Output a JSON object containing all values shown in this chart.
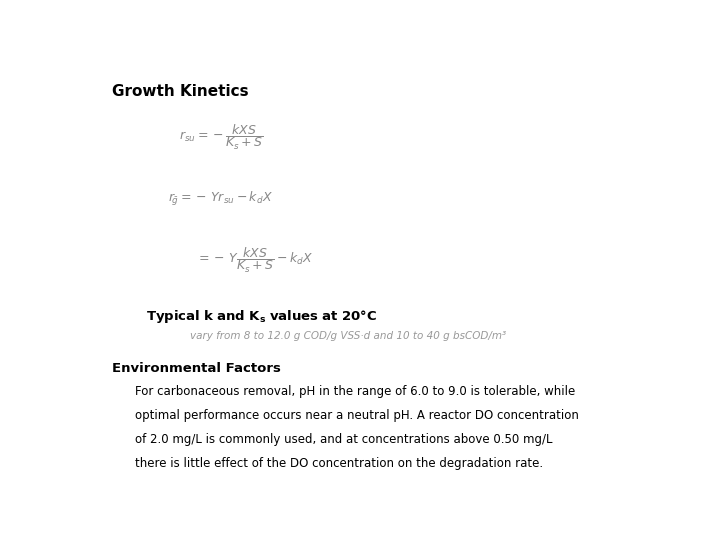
{
  "title": "Growth Kinetics",
  "typical_header_plain": "Typical k and K",
  "typical_header_sub": "s",
  "typical_header_end": " values at 20°C",
  "typical_text": "vary from 8 to 12.0 g COD/g VSS·d and 10 to 40 g bsCOD/m³",
  "env_header": "Environmental Factors",
  "env_line1": "For carbonaceous removal, pH in the range of 6.0 to 9.0 is tolerable, while",
  "env_line2": "optimal performance occurs near a neutral pH. A reactor DO concentration",
  "env_line3": "of 2.0 mg/L is commonly used, and at concentrations above 0.50 mg/L",
  "env_line4": "there is little effect of the DO concentration on the degradation rate.",
  "bg_color": "#ffffff",
  "text_color": "#000000",
  "eq_color": "#888888",
  "typical_text_color": "#999999",
  "title_fontsize": 11,
  "header_fontsize": 9.5,
  "body_fontsize": 8.5,
  "eq_fontsize": 9
}
